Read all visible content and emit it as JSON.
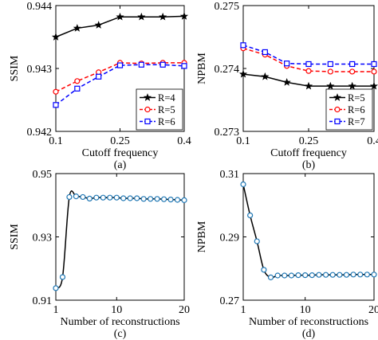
{
  "chart_data": [
    {
      "type": "line",
      "panel_label": "(a)",
      "xlabel": "Cutoff frequency",
      "ylabel": "SSIM",
      "xlim": [
        0.1,
        0.4
      ],
      "ylim": [
        0.942,
        0.944
      ],
      "xticks": [
        "0.1",
        "0.25",
        "0.4"
      ],
      "yticks": [
        "0.942",
        "0.943",
        "0.944"
      ],
      "x": [
        0.1,
        0.15,
        0.2,
        0.25,
        0.3,
        0.35,
        0.4
      ],
      "legend_position": "bottom-right",
      "grid": false,
      "series": [
        {
          "name": "R=4",
          "color": "#000000",
          "dash": "solid",
          "marker": "star",
          "values": [
            0.9435,
            0.94364,
            0.94369,
            0.94382,
            0.94382,
            0.94382,
            0.94383
          ]
        },
        {
          "name": "R=5",
          "color": "#ff0000",
          "dash": "dashed",
          "marker": "circle",
          "values": [
            0.94263,
            0.9428,
            0.94294,
            0.94309,
            0.94308,
            0.94309,
            0.94309
          ]
        },
        {
          "name": "R=6",
          "color": "#0000ff",
          "dash": "dashed",
          "marker": "square",
          "values": [
            0.94242,
            0.94268,
            0.94287,
            0.94305,
            0.94306,
            0.94306,
            0.94304
          ]
        }
      ]
    },
    {
      "type": "line",
      "panel_label": "(b)",
      "xlabel": "Cutoff frequency",
      "ylabel": "NPBM",
      "xlim": [
        0.1,
        0.4
      ],
      "ylim": [
        0.273,
        0.275
      ],
      "xticks": [
        "0.1",
        "0.25",
        "0.4"
      ],
      "yticks": [
        "0.273",
        "0.274",
        "0.275"
      ],
      "x": [
        0.1,
        0.15,
        0.2,
        0.25,
        0.3,
        0.35,
        0.4
      ],
      "legend_position": "bottom-right",
      "grid": false,
      "series": [
        {
          "name": "R=5",
          "color": "#000000",
          "dash": "solid",
          "marker": "star",
          "values": [
            0.27391,
            0.27387,
            0.27378,
            0.27372,
            0.27372,
            0.27372,
            0.27372
          ]
        },
        {
          "name": "R=6",
          "color": "#ff0000",
          "dash": "dashed",
          "marker": "circle",
          "values": [
            0.27432,
            0.27422,
            0.27404,
            0.27396,
            0.27395,
            0.27395,
            0.27395
          ]
        },
        {
          "name": "R=7",
          "color": "#0000ff",
          "dash": "dashed",
          "marker": "square",
          "values": [
            0.27437,
            0.27426,
            0.27408,
            0.27407,
            0.27407,
            0.27407,
            0.27407
          ]
        }
      ]
    },
    {
      "type": "line",
      "panel_label": "(c)",
      "xlabel": "Number of reconstructions",
      "ylabel": "SSIM",
      "xlim": [
        1,
        20
      ],
      "ylim": [
        0.91,
        0.95
      ],
      "xticks": [
        "1",
        "10",
        "20"
      ],
      "yticks": [
        "0.91",
        "0.93",
        "0.95"
      ],
      "grid": false,
      "series": [
        {
          "color": "#000000",
          "marker": "circle",
          "marker_color": "#1f77b4",
          "x": [
            1,
            2,
            3,
            4,
            5,
            6,
            7,
            8,
            9,
            10,
            11,
            12,
            13,
            14,
            15,
            16,
            17,
            18,
            19,
            20
          ],
          "values": [
            0.9138,
            0.9173,
            0.9426,
            0.9428,
            0.9426,
            0.9421,
            0.9424,
            0.9424,
            0.9424,
            0.9424,
            0.9422,
            0.9422,
            0.9422,
            0.942,
            0.942,
            0.942,
            0.9419,
            0.9418,
            0.9417,
            0.9416
          ]
        }
      ]
    },
    {
      "type": "line",
      "panel_label": "(d)",
      "xlabel": "Number of reconstructions",
      "ylabel": "NPBM",
      "xlim": [
        1,
        20
      ],
      "ylim": [
        0.27,
        0.31
      ],
      "xticks": [
        "1",
        "10",
        "20"
      ],
      "yticks": [
        "0.27",
        "0.29",
        "0.31"
      ],
      "grid": false,
      "series": [
        {
          "color": "#000000",
          "marker": "circle",
          "marker_color": "#1f77b4",
          "x": [
            1,
            2,
            3,
            4,
            5,
            6,
            7,
            8,
            9,
            10,
            11,
            12,
            13,
            14,
            15,
            16,
            17,
            18,
            19,
            20
          ],
          "values": [
            0.3066,
            0.2968,
            0.2886,
            0.2796,
            0.2772,
            0.2778,
            0.2778,
            0.2778,
            0.2779,
            0.2779,
            0.2779,
            0.278,
            0.278,
            0.278,
            0.278,
            0.278,
            0.2781,
            0.2781,
            0.2781,
            0.2781
          ]
        }
      ]
    }
  ]
}
